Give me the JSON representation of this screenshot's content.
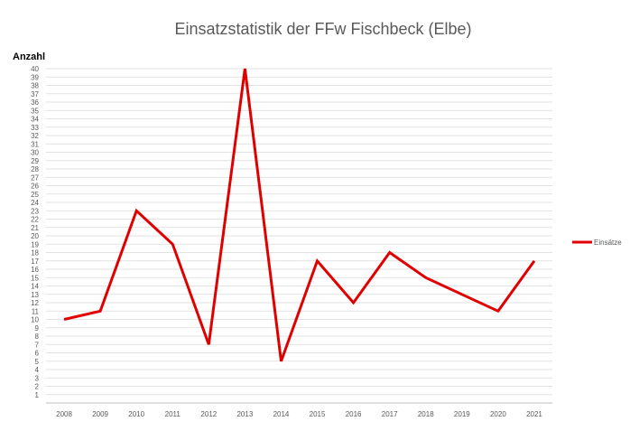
{
  "chart_data": {
    "type": "line",
    "title": "Einsatzstatistik der FFw Fischbeck (Elbe)",
    "xlabel": "",
    "ylabel": "Anzahl",
    "categories": [
      "2008",
      "2009",
      "2010",
      "2011",
      "2012",
      "2013",
      "2014",
      "2015",
      "2016",
      "2017",
      "2018",
      "2019",
      "2020",
      "2021"
    ],
    "series": [
      {
        "name": "Einsätze",
        "values": [
          10,
          11,
          23,
          19,
          7,
          40,
          5,
          17,
          12,
          18,
          15,
          13,
          11,
          17
        ],
        "color": "#e00000"
      }
    ],
    "ylim": [
      0,
      40
    ],
    "yticks": [
      1,
      2,
      3,
      4,
      5,
      6,
      7,
      8,
      9,
      10,
      11,
      12,
      13,
      14,
      15,
      16,
      17,
      18,
      19,
      20,
      21,
      22,
      23,
      24,
      25,
      26,
      27,
      28,
      29,
      30,
      31,
      32,
      33,
      34,
      35,
      36,
      37,
      38,
      39,
      40
    ],
    "grid": true,
    "legend_position": "right"
  }
}
